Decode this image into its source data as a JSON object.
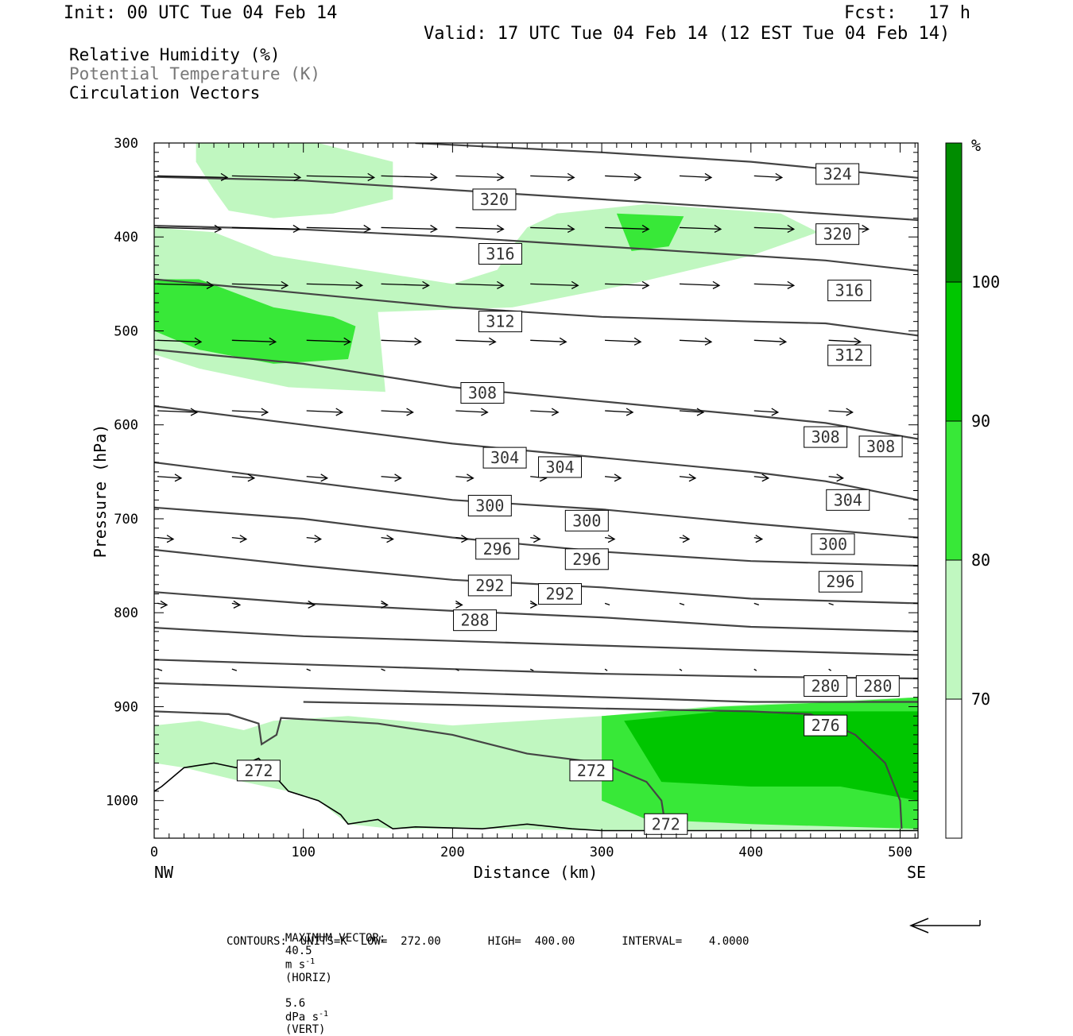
{
  "header": {
    "init": "Init: 00 UTC Tue 04 Feb 14",
    "fcst_label": "Fcst:",
    "fcst_value": "17 h",
    "valid": "Valid: 17 UTC Tue 04 Feb 14 (12 EST Tue 04 Feb 14)"
  },
  "legend": {
    "line1": "Relative Humidity (%)",
    "line2": "Potential Temperature (K)",
    "line3": "Circulation Vectors"
  },
  "colorbar": {
    "unit": "%",
    "levels": [
      {
        "label": "",
        "color": "#ffffff"
      },
      {
        "label": "70",
        "color": "#c0f7c0"
      },
      {
        "label": "80",
        "color": "#38e838"
      },
      {
        "label": "90",
        "color": "#00c600"
      },
      {
        "label": "100",
        "color": "#008c00"
      }
    ]
  },
  "footer": {
    "max_vector_label": "MAXIMUM VECTOR:",
    "horiz_value": "40.5",
    "horiz_units": "m s",
    "horiz_exp": "-1",
    "horiz_tag": "(HORIZ)",
    "vert_value": "5.6",
    "vert_units": "dPa s",
    "vert_exp": "-1",
    "vert_tag": "(VERT)",
    "contours_line": "CONTOURS:  UNITS=K  LOW=  272.00       HIGH=  400.00       INTERVAL=    4.0000"
  },
  "chart_data": {
    "type": "contour",
    "xlabel": "Distance (km)",
    "ylabel": "Pressure (hPa)",
    "xlim": [
      0,
      512
    ],
    "ylim": [
      300,
      1040
    ],
    "x_ticks": [
      0,
      100,
      200,
      300,
      400,
      500
    ],
    "y_ticks": [
      300,
      400,
      500,
      600,
      700,
      800,
      900,
      1000
    ],
    "x_end_labels": {
      "left": "NW",
      "right": "SE"
    },
    "theta_contours": [
      {
        "points": [
          [
            0,
            336
          ],
          [
            100,
            340
          ],
          [
            200,
            350
          ],
          [
            300,
            360
          ],
          [
            400,
            370
          ],
          [
            512,
            382
          ]
        ]
      },
      {
        "points": [
          [
            175,
            300
          ],
          [
            300,
            310
          ],
          [
            400,
            320
          ],
          [
            512,
            337
          ]
        ]
      },
      {
        "points": [
          [
            0,
            388
          ],
          [
            100,
            392
          ],
          [
            200,
            400
          ],
          [
            300,
            410
          ],
          [
            400,
            420
          ],
          [
            450,
            425
          ],
          [
            512,
            436
          ]
        ]
      },
      {
        "points": [
          [
            0,
            445
          ],
          [
            100,
            460
          ],
          [
            200,
            475
          ],
          [
            300,
            485
          ],
          [
            400,
            490
          ],
          [
            450,
            492
          ],
          [
            512,
            505
          ]
        ]
      },
      {
        "points": [
          [
            0,
            520
          ],
          [
            100,
            535
          ],
          [
            200,
            560
          ],
          [
            300,
            575
          ],
          [
            400,
            590
          ],
          [
            450,
            598
          ],
          [
            512,
            615
          ]
        ]
      },
      {
        "points": [
          [
            0,
            580
          ],
          [
            100,
            600
          ],
          [
            200,
            620
          ],
          [
            300,
            635
          ],
          [
            400,
            650
          ],
          [
            450,
            660
          ],
          [
            512,
            680
          ]
        ]
      },
      {
        "points": [
          [
            0,
            640
          ],
          [
            100,
            660
          ],
          [
            200,
            680
          ],
          [
            300,
            690
          ],
          [
            400,
            705
          ],
          [
            512,
            720
          ]
        ]
      },
      {
        "points": [
          [
            0,
            688
          ],
          [
            100,
            700
          ],
          [
            200,
            720
          ],
          [
            300,
            735
          ],
          [
            400,
            745
          ],
          [
            512,
            750
          ]
        ]
      },
      {
        "points": [
          [
            0,
            733
          ],
          [
            100,
            750
          ],
          [
            200,
            765
          ],
          [
            300,
            773
          ],
          [
            400,
            785
          ],
          [
            512,
            790
          ]
        ]
      },
      {
        "points": [
          [
            0,
            778
          ],
          [
            100,
            790
          ],
          [
            200,
            798
          ],
          [
            300,
            805
          ],
          [
            400,
            815
          ],
          [
            512,
            820
          ]
        ]
      },
      {
        "points": [
          [
            0,
            816
          ],
          [
            100,
            825
          ],
          [
            200,
            830
          ],
          [
            300,
            835
          ],
          [
            400,
            840
          ],
          [
            512,
            845
          ]
        ]
      },
      {
        "points": [
          [
            0,
            850
          ],
          [
            100,
            855
          ],
          [
            200,
            860
          ],
          [
            300,
            865
          ],
          [
            400,
            868
          ],
          [
            512,
            870
          ]
        ]
      },
      {
        "points": [
          [
            0,
            875
          ],
          [
            100,
            880
          ],
          [
            200,
            885
          ],
          [
            300,
            890
          ],
          [
            400,
            895
          ],
          [
            512,
            895
          ]
        ]
      },
      {
        "points": [
          [
            0,
            905
          ],
          [
            50,
            908
          ],
          [
            70,
            918
          ],
          [
            72,
            940
          ],
          [
            82,
            930
          ],
          [
            85,
            912
          ],
          [
            150,
            918
          ],
          [
            200,
            930
          ],
          [
            250,
            950
          ],
          [
            300,
            960
          ],
          [
            330,
            980
          ],
          [
            340,
            1000
          ],
          [
            343,
            1030
          ]
        ]
      },
      {
        "points": [
          [
            100,
            895
          ],
          [
            200,
            898
          ],
          [
            300,
            902
          ],
          [
            400,
            905
          ],
          [
            440,
            908
          ],
          [
            470,
            930
          ],
          [
            490,
            960
          ],
          [
            500,
            1000
          ],
          [
            501,
            1030
          ]
        ]
      }
    ],
    "theta_labels": [
      {
        "text": "324",
        "x": 458,
        "p": 333
      },
      {
        "text": "320",
        "x": 228,
        "p": 360
      },
      {
        "text": "320",
        "x": 458,
        "p": 397
      },
      {
        "text": "316",
        "x": 232,
        "p": 418
      },
      {
        "text": "316",
        "x": 466,
        "p": 457
      },
      {
        "text": "312",
        "x": 232,
        "p": 490
      },
      {
        "text": "312",
        "x": 466,
        "p": 526
      },
      {
        "text": "308",
        "x": 220,
        "p": 566
      },
      {
        "text": "308",
        "x": 450,
        "p": 613
      },
      {
        "text": "308",
        "x": 487,
        "p": 623
      },
      {
        "text": "304",
        "x": 235,
        "p": 635
      },
      {
        "text": "304",
        "x": 272,
        "p": 645
      },
      {
        "text": "304",
        "x": 465,
        "p": 680
      },
      {
        "text": "300",
        "x": 225,
        "p": 686
      },
      {
        "text": "300",
        "x": 290,
        "p": 702
      },
      {
        "text": "300",
        "x": 455,
        "p": 727
      },
      {
        "text": "296",
        "x": 230,
        "p": 732
      },
      {
        "text": "296",
        "x": 290,
        "p": 743
      },
      {
        "text": "296",
        "x": 460,
        "p": 767
      },
      {
        "text": "292",
        "x": 225,
        "p": 771
      },
      {
        "text": "292",
        "x": 272,
        "p": 780
      },
      {
        "text": "288",
        "x": 215,
        "p": 808
      },
      {
        "text": "280",
        "x": 450,
        "p": 878
      },
      {
        "text": "280",
        "x": 485,
        "p": 878
      },
      {
        "text": "276",
        "x": 450,
        "p": 920
      },
      {
        "text": "272",
        "x": 70,
        "p": 968
      },
      {
        "text": "272",
        "x": 293,
        "p": 968
      },
      {
        "text": "272",
        "x": 343,
        "p": 1025
      }
    ],
    "terrain_surface": [
      [
        0,
        990
      ],
      [
        5,
        985
      ],
      [
        20,
        965
      ],
      [
        40,
        960
      ],
      [
        55,
        965
      ],
      [
        70,
        955
      ],
      [
        90,
        990
      ],
      [
        110,
        1000
      ],
      [
        125,
        1015
      ],
      [
        130,
        1025
      ],
      [
        150,
        1020
      ],
      [
        160,
        1030
      ],
      [
        175,
        1028
      ],
      [
        220,
        1030
      ],
      [
        250,
        1025
      ],
      [
        280,
        1030
      ],
      [
        300,
        1032
      ],
      [
        512,
        1032
      ]
    ],
    "rh_regions": [
      {
        "level": "70-80",
        "polygon": [
          [
            28,
            300
          ],
          [
            80,
            300
          ],
          [
            110,
            300
          ],
          [
            160,
            320
          ],
          [
            160,
            360
          ],
          [
            120,
            375
          ],
          [
            80,
            380
          ],
          [
            50,
            372
          ],
          [
            40,
            350
          ],
          [
            28,
            320
          ]
        ]
      },
      {
        "level": "70-80",
        "polygon": [
          [
            0,
            390
          ],
          [
            40,
            395
          ],
          [
            80,
            420
          ],
          [
            160,
            440
          ],
          [
            200,
            450
          ],
          [
            230,
            435
          ],
          [
            240,
            410
          ],
          [
            250,
            390
          ],
          [
            270,
            375
          ],
          [
            330,
            365
          ],
          [
            420,
            375
          ],
          [
            445,
            395
          ],
          [
            400,
            420
          ],
          [
            320,
            450
          ],
          [
            240,
            475
          ],
          [
            150,
            480
          ],
          [
            155,
            565
          ],
          [
            90,
            560
          ],
          [
            30,
            540
          ],
          [
            0,
            525
          ]
        ]
      },
      {
        "level": "80-90",
        "polygon": [
          [
            0,
            445
          ],
          [
            30,
            445
          ],
          [
            80,
            475
          ],
          [
            120,
            485
          ],
          [
            135,
            495
          ],
          [
            130,
            530
          ],
          [
            80,
            535
          ],
          [
            30,
            520
          ],
          [
            0,
            500
          ]
        ]
      },
      {
        "level": "80-90",
        "polygon": [
          [
            310,
            375
          ],
          [
            355,
            378
          ],
          [
            345,
            410
          ],
          [
            320,
            415
          ]
        ]
      },
      {
        "level": "70-80",
        "polygon": [
          [
            0,
            920
          ],
          [
            30,
            915
          ],
          [
            60,
            925
          ],
          [
            80,
            915
          ],
          [
            130,
            910
          ],
          [
            200,
            920
          ],
          [
            300,
            910
          ],
          [
            370,
            900
          ],
          [
            440,
            895
          ],
          [
            512,
            890
          ],
          [
            512,
            1032
          ],
          [
            300,
            1032
          ],
          [
            220,
            1030
          ],
          [
            160,
            1030
          ],
          [
            130,
            1025
          ],
          [
            110,
            1000
          ],
          [
            90,
            990
          ],
          [
            60,
            980
          ],
          [
            20,
            965
          ],
          [
            0,
            960
          ]
        ]
      },
      {
        "level": "80-90",
        "polygon": [
          [
            300,
            910
          ],
          [
            380,
            900
          ],
          [
            460,
            895
          ],
          [
            512,
            890
          ],
          [
            512,
            1030
          ],
          [
            400,
            1025
          ],
          [
            330,
            1020
          ],
          [
            300,
            1000
          ]
        ]
      },
      {
        "level": "90-100",
        "polygon": [
          [
            315,
            915
          ],
          [
            380,
            905
          ],
          [
            470,
            905
          ],
          [
            512,
            905
          ],
          [
            512,
            1000
          ],
          [
            460,
            985
          ],
          [
            400,
            985
          ],
          [
            340,
            980
          ]
        ]
      }
    ],
    "vector_rows": [
      {
        "p": 335,
        "len": [
          88,
          86,
          85,
          70,
          60,
          55,
          45,
          40,
          35,
          30
        ]
      },
      {
        "p": 390,
        "len": [
          80,
          85,
          80,
          70,
          60,
          55,
          55,
          52,
          50,
          50
        ]
      },
      {
        "p": 450,
        "len": [
          70,
          70,
          70,
          60,
          60,
          60,
          55,
          50,
          50,
          45
        ]
      },
      {
        "p": 510,
        "len": [
          55,
          55,
          55,
          50,
          50,
          45,
          45,
          40,
          40,
          40
        ]
      },
      {
        "p": 585,
        "len": [
          50,
          45,
          45,
          40,
          40,
          35,
          35,
          30,
          30,
          30
        ]
      },
      {
        "p": 655,
        "len": [
          30,
          28,
          26,
          25,
          22,
          20,
          20,
          20,
          18,
          18
        ]
      },
      {
        "p": 720,
        "len": [
          20,
          18,
          18,
          15,
          15,
          12,
          12,
          12,
          10,
          10
        ]
      },
      {
        "p": 790,
        "len": [
          12,
          10,
          10,
          8,
          8,
          8,
          6,
          6,
          6,
          6
        ]
      },
      {
        "p": 860,
        "len": [
          6,
          6,
          5,
          5,
          4,
          4,
          3,
          3,
          3,
          3
        ]
      }
    ]
  }
}
